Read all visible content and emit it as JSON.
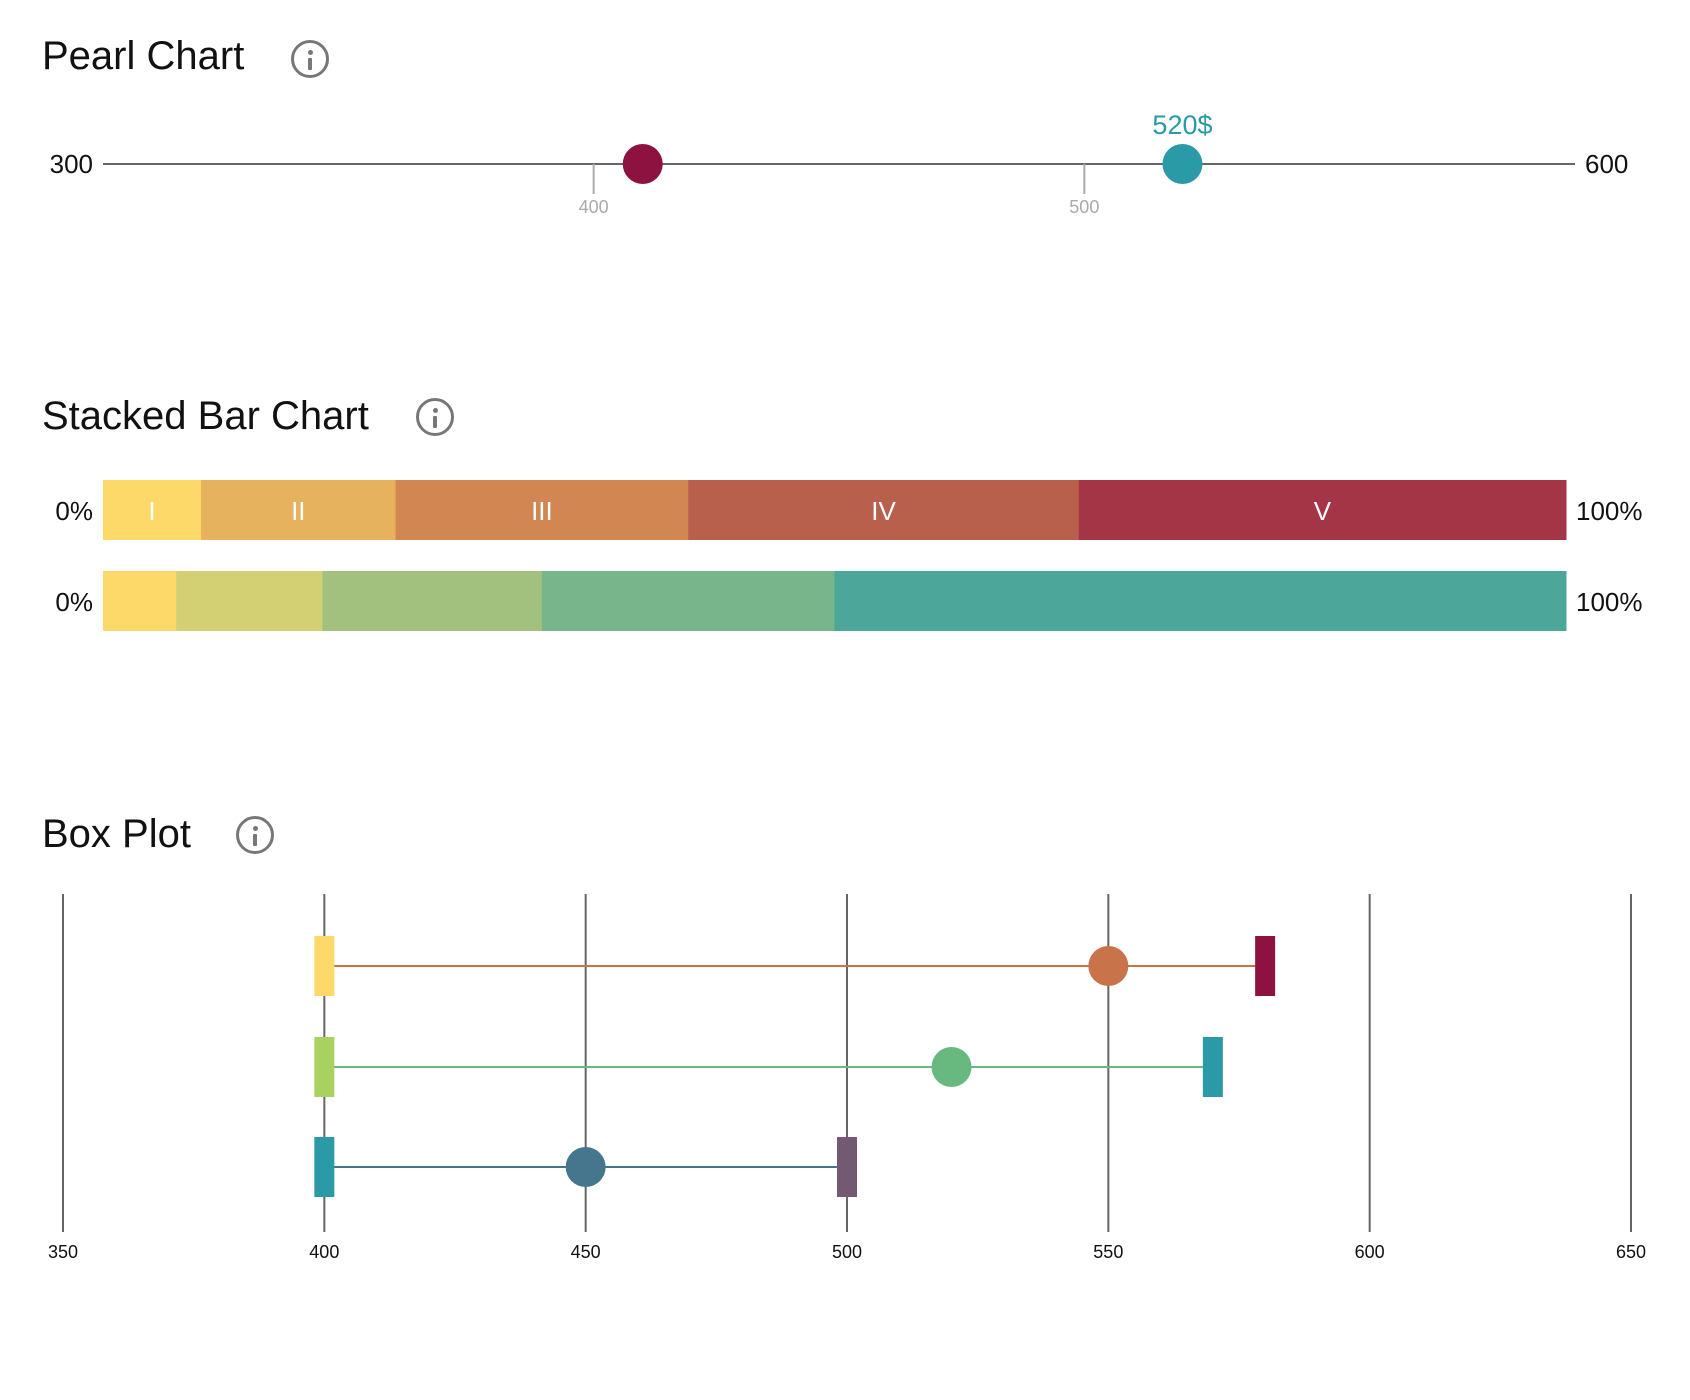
{
  "pearl": {
    "title": "Pearl Chart",
    "info_icon": "info-icon",
    "chart_data": {
      "type": "scatter",
      "min": 300,
      "max": 600,
      "min_label": "300",
      "max_label": "600",
      "ticks": [
        400,
        500
      ],
      "tick_labels": [
        "400",
        "500"
      ],
      "points": [
        {
          "value": 410,
          "color": "#8e1240",
          "label": ""
        },
        {
          "value": 520,
          "color": "#2a9ba6",
          "label": "520$"
        }
      ]
    }
  },
  "stacked": {
    "title": "Stacked Bar Chart",
    "info_icon": "info-icon",
    "chart_data": {
      "type": "bar",
      "start_label": "0%",
      "end_label": "100%",
      "rows": [
        {
          "segments": [
            {
              "label": "I",
              "value": 6.7,
              "color": "#fcd968"
            },
            {
              "label": "II",
              "value": 13.3,
              "color": "#e6b25e"
            },
            {
              "label": "III",
              "value": 20,
              "color": "#d28753"
            },
            {
              "label": "IV",
              "value": 26.7,
              "color": "#b9604c"
            },
            {
              "label": "V",
              "value": 33.3,
              "color": "#a33547"
            }
          ]
        },
        {
          "segments": [
            {
              "label": "",
              "value": 5,
              "color": "#fcd968"
            },
            {
              "label": "",
              "value": 10,
              "color": "#d2d073"
            },
            {
              "label": "",
              "value": 15,
              "color": "#a3c17e"
            },
            {
              "label": "",
              "value": 20,
              "color": "#78b58a"
            },
            {
              "label": "",
              "value": 50,
              "color": "#4ca79a"
            }
          ]
        }
      ]
    }
  },
  "box": {
    "title": "Box Plot",
    "info_icon": "info-icon",
    "chart_data": {
      "type": "scatter",
      "xlim": [
        350,
        650
      ],
      "ticks": [
        350,
        400,
        450,
        500,
        550,
        600,
        650
      ],
      "tick_labels": [
        "350",
        "400",
        "450",
        "500",
        "550",
        "600",
        "650"
      ],
      "rows": [
        {
          "min": 400,
          "mid": 550,
          "max": 580,
          "min_color": "#fcd968",
          "line_color": "#c9734b",
          "mid_color": "#c9734b",
          "max_color": "#8e1240"
        },
        {
          "min": 400,
          "mid": 520,
          "max": 570,
          "min_color": "#a8d160",
          "line_color": "#67b97f",
          "mid_color": "#67b97f",
          "max_color": "#2a9ba6"
        },
        {
          "min": 400,
          "mid": 450,
          "max": 500,
          "min_color": "#2a9ba6",
          "line_color": "#46768d",
          "mid_color": "#46768d",
          "max_color": "#735a72"
        }
      ]
    }
  }
}
